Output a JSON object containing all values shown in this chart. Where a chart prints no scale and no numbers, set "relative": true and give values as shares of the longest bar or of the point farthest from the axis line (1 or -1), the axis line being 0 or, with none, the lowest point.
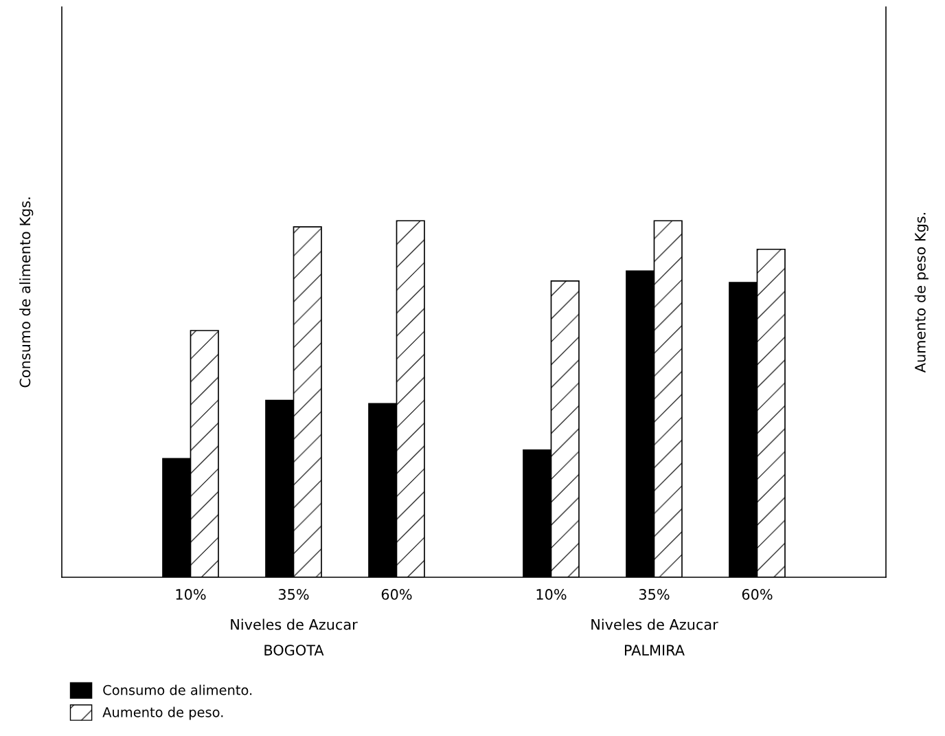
{
  "chart_data": {
    "type": "bar",
    "relative": true,
    "ylabel": "Consumo de alimento Kgs.",
    "y2label": "Aumento de peso Kgs.",
    "categories": [
      "10%",
      "35%",
      "60%",
      "10%",
      "35%",
      "60%"
    ],
    "series": [
      {
        "name": "Consumo de alimento.",
        "color": "#000000",
        "values": [
          0.333,
          0.496,
          0.487,
          0.357,
          0.859,
          0.827
        ]
      },
      {
        "name": "Aumento de peso.",
        "color": "#000000",
        "values": [
          0.692,
          0.983,
          1.0,
          0.831,
          1.0,
          0.92
        ]
      }
    ],
    "annotations": [
      "Niveles de Azucar",
      "BOGOTA",
      "Niveles de Azucar",
      "PALMIRA"
    ],
    "legend": "bottom left",
    "grid": false
  }
}
